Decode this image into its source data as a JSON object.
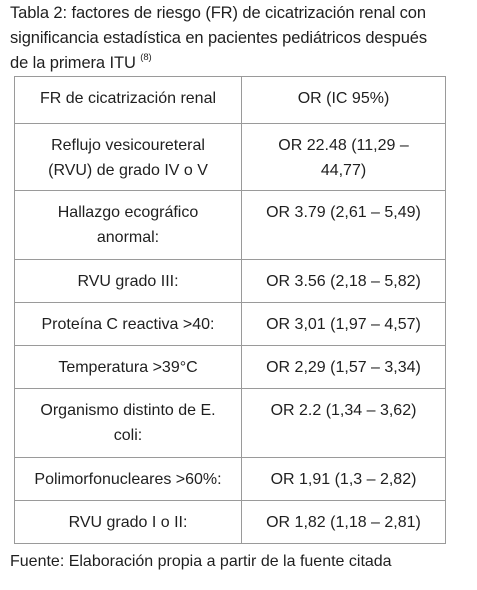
{
  "caption": {
    "line1": "Tabla 2: factores de riesgo (FR) de cicatrización renal con",
    "line2": "significancia estadística en pacientes pediátricos después",
    "line3": "de la primera ITU",
    "reference": "(8)"
  },
  "table": {
    "header": {
      "factor": "FR de cicatrización renal",
      "or": "OR (IC 95%)"
    },
    "rows": [
      {
        "factor_lines": [
          "Reflujo vesicoureteral",
          "(RVU) de grado IV o V"
        ],
        "or_lines": [
          "OR 22.48 (11,29 –",
          "44,77)"
        ]
      },
      {
        "factor_lines": [
          "Hallazgo ecográfico",
          "anormal:"
        ],
        "or_lines": [
          "OR 3.79 (2,61 – 5,49)"
        ]
      },
      {
        "factor_lines": [
          "RVU grado III:"
        ],
        "or_lines": [
          "OR 3.56 (2,18 – 5,82)"
        ]
      },
      {
        "factor_lines": [
          "Proteína C reactiva >40:"
        ],
        "or_lines": [
          "OR 3,01 (1,97 – 4,57)"
        ]
      },
      {
        "factor_lines": [
          "Temperatura >39°C"
        ],
        "or_lines": [
          "OR 2,29 (1,57 – 3,34)"
        ]
      },
      {
        "factor_lines": [
          "Organismo distinto de E.",
          "coli:"
        ],
        "or_lines": [
          "OR 2.2 (1,34 – 3,62)"
        ]
      },
      {
        "factor_lines": [
          "Polimorfonucleares >60%:"
        ],
        "or_lines": [
          "OR 1,91 (1,3 – 2,82)"
        ]
      },
      {
        "factor_lines": [
          "RVU grado I o II:"
        ],
        "or_lines": [
          "OR 1,82 (1,18 – 2,81)"
        ]
      }
    ]
  },
  "source": "Fuente: Elaboración propia a partir de la fuente citada"
}
